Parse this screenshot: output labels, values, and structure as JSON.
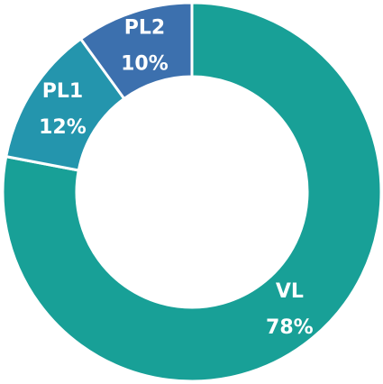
{
  "chart_data": {
    "type": "donut",
    "categories": [
      "VL",
      "PL1",
      "PL2"
    ],
    "values": [
      78,
      12,
      10
    ],
    "value_labels": [
      "78%",
      "12%",
      "10%"
    ],
    "colors": [
      "#18a097",
      "#2495ad",
      "#3c70ae"
    ]
  }
}
